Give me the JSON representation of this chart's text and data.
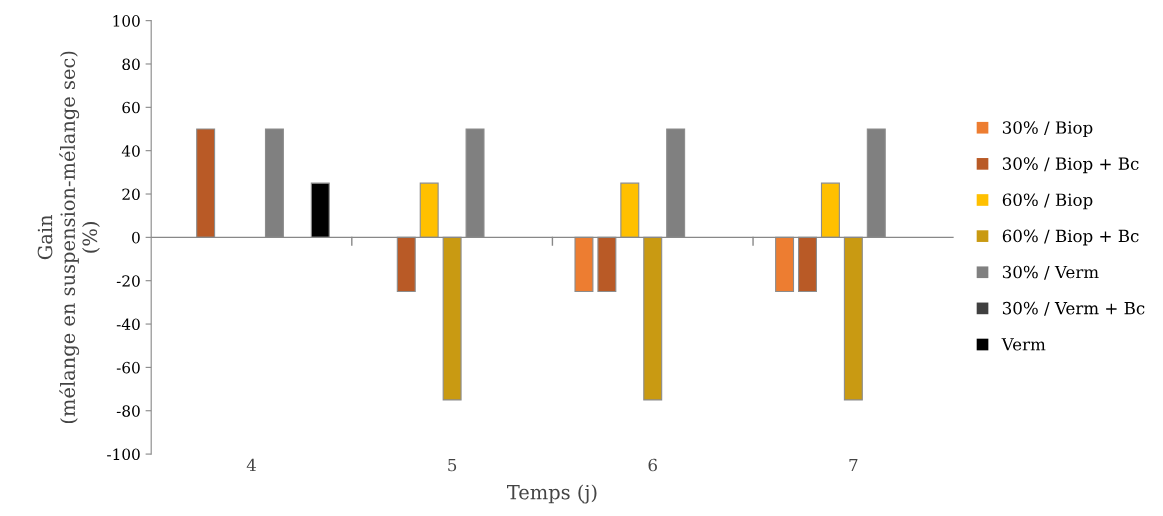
{
  "chart_data": {
    "type": "bar",
    "xlabel": "Temps (j)",
    "ylabel": "Gain\n(mélange en suspension-mélange sec)\n(%)",
    "categories": [
      "4",
      "5",
      "6",
      "7"
    ],
    "series": [
      {
        "name": "30% / Biop",
        "color": "#ed7d31",
        "values": [
          null,
          null,
          -25,
          -25
        ]
      },
      {
        "name": "30% / Biop + Bc",
        "color": "#b95a26",
        "values": [
          50,
          -25,
          -25,
          -25
        ]
      },
      {
        "name": "60% / Biop",
        "color": "#ffc000",
        "values": [
          null,
          25,
          25,
          25
        ]
      },
      {
        "name": "60% / Biop + Bc",
        "color": "#c99a12",
        "values": [
          null,
          -75,
          -75,
          -75
        ]
      },
      {
        "name": "30% / Verm",
        "color": "#808080",
        "values": [
          50,
          50,
          50,
          50
        ]
      },
      {
        "name": "30% / Verm + Bc",
        "color": "#404040",
        "values": [
          null,
          null,
          null,
          null
        ]
      },
      {
        "name": "Verm",
        "color": "#000000",
        "values": [
          25,
          null,
          null,
          null
        ]
      }
    ],
    "ylim": [
      -100,
      100
    ],
    "yticks": [
      -100,
      -80,
      -60,
      -40,
      -20,
      0,
      20,
      40,
      60,
      80,
      100
    ],
    "legend": "right"
  }
}
